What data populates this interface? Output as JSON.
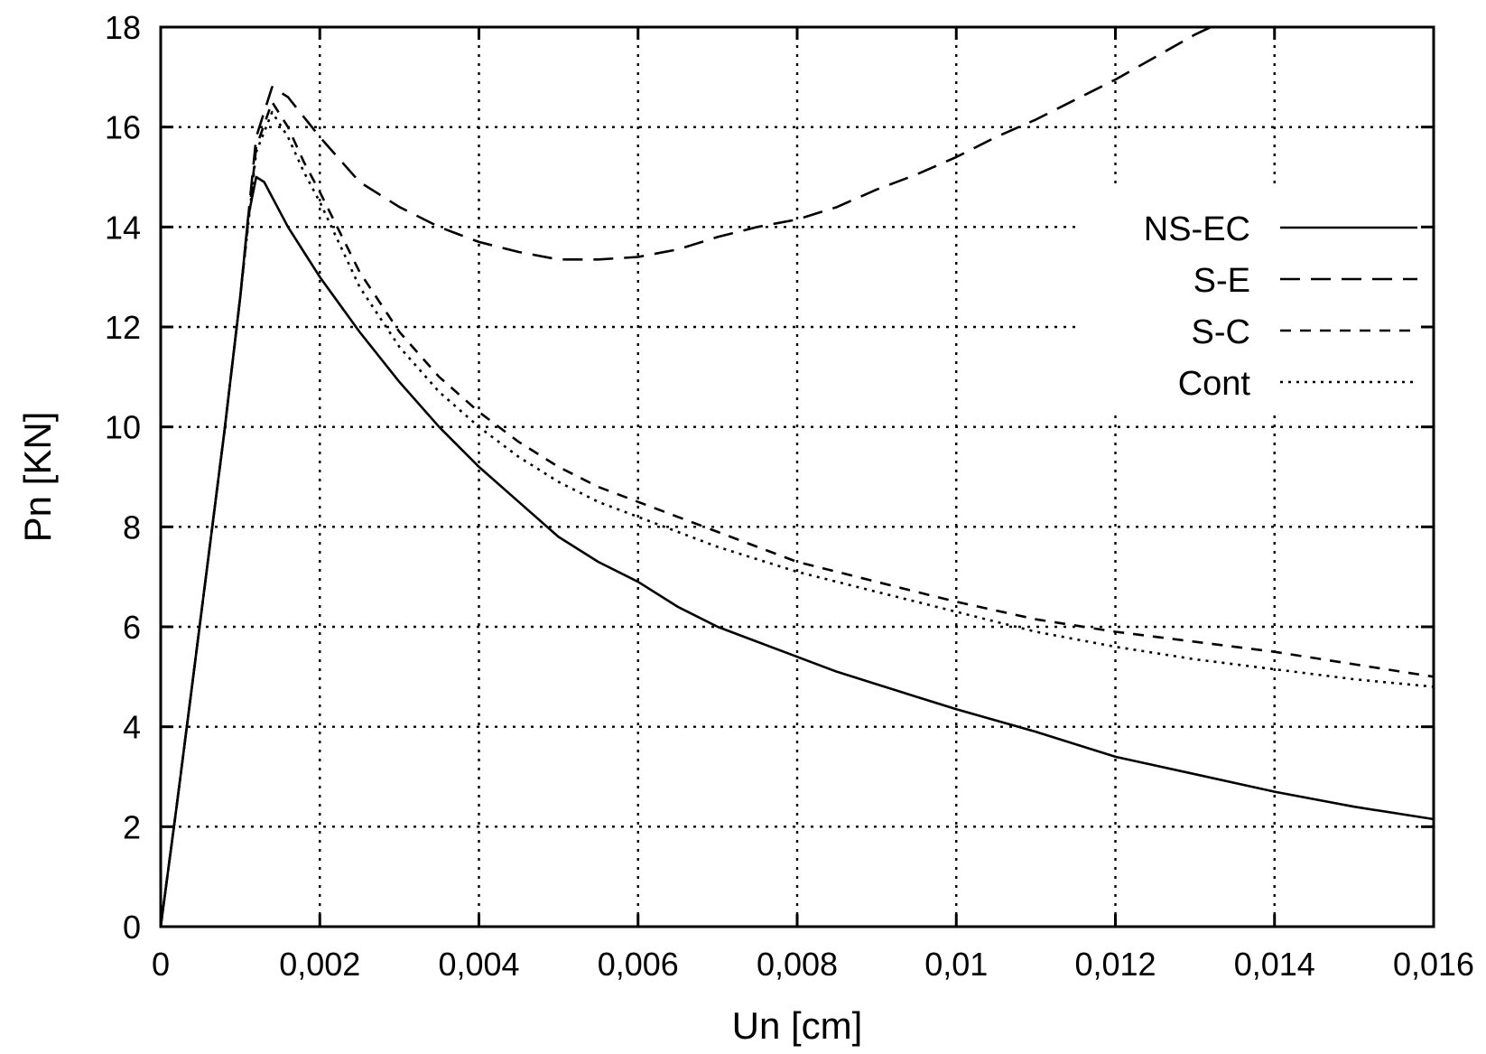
{
  "chart_data": {
    "type": "line",
    "xlabel": "Un [cm]",
    "ylabel": "Pn [KN]",
    "xlim": [
      0,
      0.016
    ],
    "ylim": [
      0,
      18
    ],
    "x_ticks": [
      0,
      0.002,
      0.004,
      0.006,
      0.008,
      0.01,
      0.012,
      0.014,
      0.016
    ],
    "x_tick_labels": [
      "0",
      "0,002",
      "0,004",
      "0,006",
      "0,008",
      "0,01",
      "0,012",
      "0,014",
      "0,016"
    ],
    "y_ticks": [
      0,
      2,
      4,
      6,
      8,
      10,
      12,
      14,
      16,
      18
    ],
    "y_tick_labels": [
      "0",
      "2",
      "4",
      "6",
      "8",
      "10",
      "12",
      "14",
      "16",
      "18"
    ],
    "grid": true,
    "legend_position": "right",
    "series": [
      {
        "name": "NS-EC",
        "style": "solid",
        "x": [
          0,
          0.0002,
          0.0004,
          0.0006,
          0.0008,
          0.001,
          0.0011,
          0.0012,
          0.0013,
          0.0014,
          0.0016,
          0.0018,
          0.002,
          0.0025,
          0.003,
          0.0035,
          0.004,
          0.0045,
          0.005,
          0.0055,
          0.006,
          0.0065,
          0.007,
          0.0075,
          0.008,
          0.0085,
          0.009,
          0.0095,
          0.01,
          0.011,
          0.012,
          0.013,
          0.014,
          0.015,
          0.016
        ],
        "y": [
          0,
          2.4,
          4.9,
          7.4,
          9.9,
          12.6,
          14.2,
          15.0,
          14.9,
          14.6,
          14.0,
          13.5,
          13.0,
          11.9,
          10.9,
          10.0,
          9.2,
          8.5,
          7.8,
          7.3,
          6.9,
          6.4,
          6.0,
          5.7,
          5.4,
          5.1,
          4.85,
          4.6,
          4.35,
          3.9,
          3.4,
          3.05,
          2.7,
          2.4,
          2.15
        ]
      },
      {
        "name": "S-E",
        "style": "long-dash",
        "x": [
          0,
          0.0002,
          0.0004,
          0.0006,
          0.0008,
          0.001,
          0.0012,
          0.0014,
          0.0016,
          0.0018,
          0.002,
          0.0025,
          0.003,
          0.0035,
          0.004,
          0.0045,
          0.005,
          0.0055,
          0.006,
          0.0065,
          0.007,
          0.0075,
          0.008,
          0.0085,
          0.009,
          0.0095,
          0.01,
          0.0105,
          0.011,
          0.0115,
          0.012,
          0.0125,
          0.013,
          0.0132
        ],
        "y": [
          0,
          2.4,
          4.9,
          7.4,
          9.9,
          12.6,
          15.8,
          16.8,
          16.6,
          16.2,
          15.8,
          14.9,
          14.4,
          14.0,
          13.7,
          13.5,
          13.35,
          13.35,
          13.4,
          13.55,
          13.8,
          14.0,
          14.15,
          14.4,
          14.75,
          15.05,
          15.4,
          15.8,
          16.15,
          16.55,
          16.95,
          17.4,
          17.85,
          18.0
        ]
      },
      {
        "name": "S-C",
        "style": "short-dash",
        "x": [
          0,
          0.0002,
          0.0004,
          0.0006,
          0.0008,
          0.001,
          0.0012,
          0.0014,
          0.0016,
          0.0018,
          0.002,
          0.0025,
          0.003,
          0.0035,
          0.004,
          0.0045,
          0.005,
          0.0055,
          0.006,
          0.0065,
          0.007,
          0.0075,
          0.008,
          0.0085,
          0.009,
          0.0095,
          0.01,
          0.011,
          0.012,
          0.013,
          0.014,
          0.015,
          0.016
        ],
        "y": [
          0,
          2.4,
          4.9,
          7.4,
          9.9,
          12.6,
          15.6,
          16.5,
          16.0,
          15.3,
          14.7,
          13.1,
          11.9,
          11.0,
          10.3,
          9.7,
          9.2,
          8.8,
          8.5,
          8.2,
          7.9,
          7.6,
          7.3,
          7.1,
          6.9,
          6.7,
          6.5,
          6.15,
          5.9,
          5.7,
          5.5,
          5.25,
          5.0
        ]
      },
      {
        "name": "Cont",
        "style": "dotted",
        "x": [
          0,
          0.0002,
          0.0004,
          0.0006,
          0.0008,
          0.001,
          0.0012,
          0.0014,
          0.0016,
          0.0018,
          0.002,
          0.0025,
          0.003,
          0.0035,
          0.004,
          0.0045,
          0.005,
          0.0055,
          0.006,
          0.0065,
          0.007,
          0.0075,
          0.008,
          0.0085,
          0.009,
          0.0095,
          0.01,
          0.011,
          0.012,
          0.013,
          0.014,
          0.015,
          0.016
        ],
        "y": [
          0,
          2.4,
          4.9,
          7.4,
          9.9,
          12.6,
          15.5,
          16.3,
          15.8,
          15.1,
          14.5,
          12.8,
          11.6,
          10.7,
          10.0,
          9.4,
          8.9,
          8.5,
          8.2,
          7.9,
          7.6,
          7.35,
          7.1,
          6.9,
          6.7,
          6.5,
          6.3,
          5.9,
          5.6,
          5.35,
          5.15,
          4.95,
          4.8
        ]
      }
    ]
  }
}
